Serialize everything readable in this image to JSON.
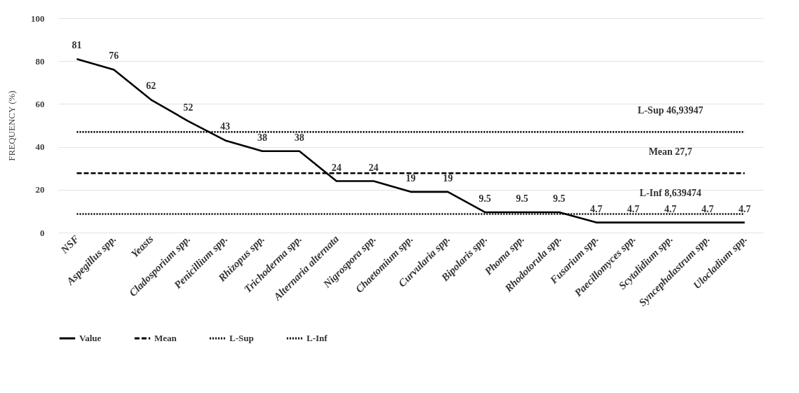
{
  "chart_data": {
    "type": "line",
    "ylabel": "FREQUENCY (%)",
    "categories": [
      "NSF",
      "Aspegillus spp.",
      "Yeasts",
      "Cladosporium spp.",
      "Penicillium spp.",
      "Rhizopus spp.",
      "Trichoderma spp.",
      "Alternaria alternata",
      "Nigrospora spp.",
      "Chaetomium spp.",
      "Curvularia spp.",
      "Bipolaris spp.",
      "Phoma spp.",
      "Rhodotorula spp.",
      "Fusarium spp.",
      "Paecillomyces spp.",
      "Scytalidium spp.",
      "Syncephalastrum spp.",
      "Ulocladium spp."
    ],
    "series": [
      {
        "name": "Value",
        "color": "#000000",
        "line_style": "solid",
        "data_labels": true,
        "values": [
          81,
          76,
          62,
          52,
          43,
          38,
          38,
          24,
          24,
          19,
          19,
          9.5,
          9.5,
          9.5,
          4.7,
          4.7,
          4.7,
          4.7,
          4.7
        ]
      },
      {
        "name": "Mean",
        "color": "#000000",
        "line_style": "dashed",
        "values": [
          27.7,
          27.7,
          27.7,
          27.7,
          27.7,
          27.7,
          27.7,
          27.7,
          27.7,
          27.7,
          27.7,
          27.7,
          27.7,
          27.7,
          27.7,
          27.7,
          27.7,
          27.7,
          27.7
        ]
      },
      {
        "name": "L-Sup",
        "color": "#000000",
        "line_style": "dotted",
        "values": [
          46.93947,
          46.93947,
          46.93947,
          46.93947,
          46.93947,
          46.93947,
          46.93947,
          46.93947,
          46.93947,
          46.93947,
          46.93947,
          46.93947,
          46.93947,
          46.93947,
          46.93947,
          46.93947,
          46.93947,
          46.93947,
          46.93947
        ]
      },
      {
        "name": "L-Inf",
        "color": "#000000",
        "line_style": "dotted",
        "values": [
          8.639474,
          8.639474,
          8.639474,
          8.639474,
          8.639474,
          8.639474,
          8.639474,
          8.639474,
          8.639474,
          8.639474,
          8.639474,
          8.639474,
          8.639474,
          8.639474,
          8.639474,
          8.639474,
          8.639474,
          8.639474,
          8.639474
        ]
      }
    ],
    "annotations": [
      {
        "text": "L-Sup  46,93947",
        "x": "Scytalidium spp.",
        "y": 46.93947
      },
      {
        "text": "Mean 27,7",
        "x": "Scytalidium spp.",
        "y": 27.7
      },
      {
        "text": "L-Inf  8,639474",
        "x": "Scytalidium spp.",
        "y": 8.639474
      }
    ],
    "ylim": [
      0,
      100
    ],
    "yticks": [
      0,
      20,
      40,
      60,
      80,
      100
    ],
    "grid": "y",
    "legend": "bottom"
  }
}
